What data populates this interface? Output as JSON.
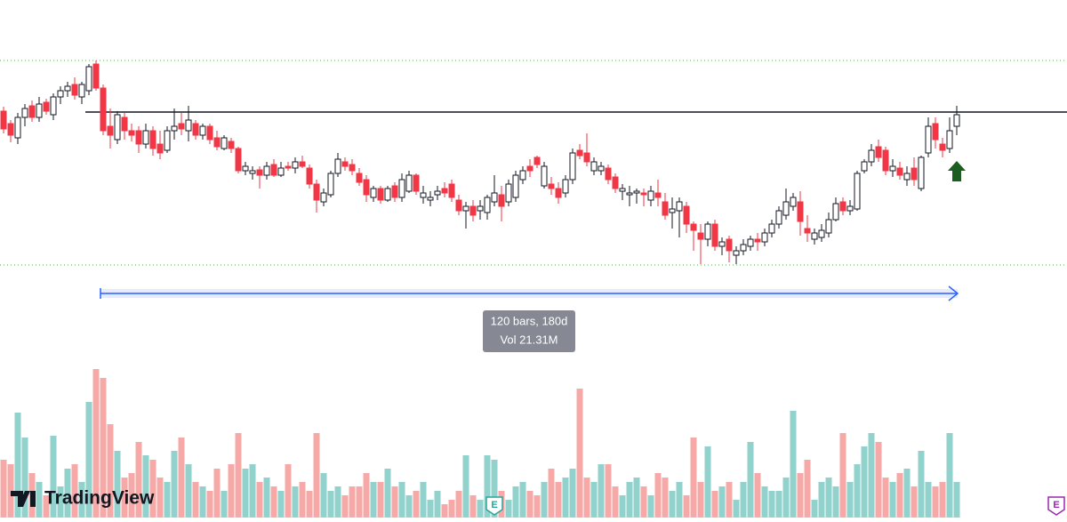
{
  "chart_data": {
    "type": "candlestick",
    "ylim": [
      0,
      587
    ],
    "volume_ylim": [
      0,
      180
    ],
    "up_color": "#ffffff",
    "up_border": "#131722",
    "down_color": "#f23645",
    "volume_up_color": "#92d2cc",
    "volume_down_color": "#f7a9a7",
    "ohlc": [
      [
        462,
        467,
        437,
        442
      ],
      [
        448,
        452,
        427,
        435
      ],
      [
        432,
        460,
        425,
        455
      ],
      [
        455,
        470,
        445,
        465
      ],
      [
        468,
        474,
        450,
        455
      ],
      [
        455,
        478,
        450,
        470
      ],
      [
        472,
        476,
        458,
        462
      ],
      [
        458,
        482,
        452,
        478
      ],
      [
        478,
        490,
        470,
        485
      ],
      [
        485,
        495,
        478,
        490
      ],
      [
        492,
        500,
        475,
        480
      ],
      [
        478,
        495,
        470,
        492
      ],
      [
        485,
        515,
        480,
        512
      ],
      [
        515,
        519,
        485,
        488
      ],
      [
        488,
        492,
        435,
        440
      ],
      [
        445,
        465,
        420,
        435
      ],
      [
        430,
        462,
        425,
        458
      ],
      [
        455,
        460,
        430,
        440
      ],
      [
        440,
        448,
        428,
        435
      ],
      [
        440,
        445,
        415,
        425
      ],
      [
        425,
        448,
        420,
        440
      ],
      [
        440,
        445,
        412,
        420
      ],
      [
        425,
        440,
        408,
        415
      ],
      [
        418,
        445,
        415,
        440
      ],
      [
        440,
        465,
        430,
        445
      ],
      [
        448,
        460,
        435,
        442
      ],
      [
        440,
        468,
        428,
        452
      ],
      [
        448,
        452,
        430,
        435
      ],
      [
        435,
        448,
        430,
        445
      ],
      [
        445,
        448,
        425,
        430
      ],
      [
        432,
        440,
        418,
        422
      ],
      [
        420,
        435,
        418,
        432
      ],
      [
        428,
        432,
        415,
        420
      ],
      [
        420,
        422,
        392,
        395
      ],
      [
        395,
        405,
        390,
        400
      ],
      [
        392,
        400,
        385,
        395
      ],
      [
        396,
        400,
        375,
        390
      ],
      [
        390,
        405,
        385,
        400
      ],
      [
        402,
        408,
        388,
        390
      ],
      [
        390,
        405,
        388,
        398
      ],
      [
        400,
        405,
        395,
        398
      ],
      [
        398,
        410,
        392,
        405
      ],
      [
        405,
        412,
        398,
        400
      ],
      [
        398,
        402,
        375,
        380
      ],
      [
        380,
        385,
        348,
        362
      ],
      [
        360,
        375,
        355,
        370
      ],
      [
        368,
        395,
        365,
        392
      ],
      [
        392,
        415,
        388,
        408
      ],
      [
        405,
        410,
        395,
        400
      ],
      [
        402,
        408,
        390,
        395
      ],
      [
        392,
        398,
        378,
        382
      ],
      [
        385,
        390,
        360,
        368
      ],
      [
        365,
        378,
        360,
        375
      ],
      [
        375,
        378,
        358,
        362
      ],
      [
        362,
        378,
        360,
        375
      ],
      [
        378,
        382,
        360,
        365
      ],
      [
        365,
        392,
        360,
        385
      ],
      [
        372,
        395,
        370,
        390
      ],
      [
        390,
        392,
        368,
        372
      ],
      [
        365,
        378,
        358,
        370
      ],
      [
        362,
        372,
        355,
        365
      ],
      [
        368,
        378,
        362,
        372
      ],
      [
        375,
        382,
        365,
        370
      ],
      [
        380,
        385,
        360,
        365
      ],
      [
        362,
        368,
        345,
        350
      ],
      [
        350,
        360,
        330,
        355
      ],
      [
        355,
        362,
        338,
        345
      ],
      [
        350,
        362,
        340,
        355
      ],
      [
        348,
        368,
        340,
        365
      ],
      [
        360,
        390,
        355,
        370
      ],
      [
        368,
        378,
        338,
        355
      ],
      [
        360,
        385,
        355,
        380
      ],
      [
        365,
        395,
        360,
        390
      ],
      [
        385,
        400,
        380,
        395
      ],
      [
        400,
        408,
        388,
        395
      ],
      [
        410,
        412,
        398,
        402
      ],
      [
        378,
        405,
        375,
        400
      ],
      [
        380,
        388,
        368,
        375
      ],
      [
        375,
        382,
        358,
        365
      ],
      [
        370,
        390,
        365,
        385
      ],
      [
        385,
        420,
        380,
        415
      ],
      [
        418,
        425,
        408,
        412
      ],
      [
        415,
        437,
        400,
        405
      ],
      [
        395,
        410,
        390,
        405
      ],
      [
        395,
        405,
        390,
        400
      ],
      [
        398,
        402,
        380,
        385
      ],
      [
        388,
        392,
        370,
        375
      ],
      [
        372,
        380,
        362,
        375
      ],
      [
        368,
        378,
        355,
        370
      ],
      [
        370,
        375,
        358,
        372
      ],
      [
        370,
        375,
        355,
        368
      ],
      [
        362,
        378,
        355,
        372
      ],
      [
        370,
        385,
        355,
        365
      ],
      [
        360,
        370,
        340,
        345
      ],
      [
        348,
        365,
        330,
        352
      ],
      [
        350,
        365,
        320,
        360
      ],
      [
        355,
        360,
        325,
        335
      ],
      [
        335,
        338,
        305,
        328
      ],
      [
        325,
        335,
        290,
        318
      ],
      [
        318,
        338,
        310,
        335
      ],
      [
        335,
        340,
        305,
        310
      ],
      [
        310,
        320,
        300,
        315
      ],
      [
        318,
        322,
        292,
        305
      ],
      [
        300,
        310,
        290,
        305
      ],
      [
        305,
        318,
        300,
        312
      ],
      [
        310,
        322,
        305,
        318
      ],
      [
        318,
        325,
        305,
        315
      ],
      [
        315,
        330,
        310,
        325
      ],
      [
        325,
        340,
        320,
        335
      ],
      [
        335,
        355,
        330,
        350
      ],
      [
        345,
        375,
        340,
        360
      ],
      [
        355,
        370,
        350,
        365
      ],
      [
        360,
        372,
        322,
        338
      ],
      [
        330,
        345,
        315,
        325
      ],
      [
        318,
        330,
        312,
        325
      ],
      [
        320,
        335,
        315,
        328
      ],
      [
        325,
        348,
        320,
        340
      ],
      [
        340,
        365,
        338,
        358
      ],
      [
        360,
        365,
        345,
        350
      ],
      [
        350,
        362,
        345,
        355
      ],
      [
        352,
        395,
        350,
        392
      ],
      [
        395,
        408,
        392,
        405
      ],
      [
        405,
        425,
        400,
        418
      ],
      [
        422,
        430,
        405,
        410
      ],
      [
        418,
        422,
        390,
        395
      ],
      [
        395,
        408,
        388,
        400
      ],
      [
        398,
        405,
        385,
        390
      ],
      [
        385,
        400,
        378,
        392
      ],
      [
        398,
        410,
        378,
        385
      ],
      [
        375,
        412,
        372,
        410
      ],
      [
        415,
        455,
        410,
        445
      ],
      [
        448,
        455,
        420,
        430
      ],
      [
        425,
        432,
        410,
        418
      ],
      [
        420,
        455,
        415,
        440
      ],
      [
        445,
        468,
        435,
        458
      ]
    ],
    "volume": [
      65,
      60,
      118,
      90,
      50,
      40,
      25,
      92,
      35,
      55,
      60,
      40,
      130,
      167,
      157,
      105,
      75,
      45,
      50,
      85,
      70,
      65,
      45,
      40,
      75,
      90,
      60,
      40,
      35,
      30,
      55,
      30,
      60,
      95,
      55,
      60,
      40,
      45,
      35,
      30,
      60,
      35,
      40,
      30,
      95,
      50,
      30,
      35,
      25,
      35,
      35,
      50,
      40,
      40,
      55,
      35,
      40,
      25,
      30,
      40,
      20,
      30,
      15,
      20,
      30,
      70,
      25,
      20,
      70,
      65,
      30,
      20,
      35,
      40,
      30,
      25,
      40,
      55,
      40,
      45,
      55,
      145,
      45,
      40,
      60,
      60,
      35,
      25,
      40,
      45,
      35,
      25,
      50,
      45,
      30,
      40,
      25,
      90,
      40,
      80,
      30,
      35,
      40,
      20,
      40,
      85,
      50,
      35,
      30,
      30,
      45,
      120,
      50,
      65,
      20,
      40,
      45,
      35,
      95,
      40,
      60,
      80,
      95,
      85,
      45,
      40,
      50,
      55,
      35,
      75,
      40,
      35,
      40,
      95,
      40
    ],
    "levels": [
      {
        "value": 461,
        "style": "solid",
        "color": "#131722",
        "start": 12
      },
      {
        "value": 519,
        "style": "dotted",
        "color": "#4caf50"
      },
      {
        "value": 289,
        "style": "dotted",
        "color": "#4caf50"
      }
    ],
    "measure": {
      "range": [
        14,
        134
      ],
      "line1": "120 bars, 180d",
      "line2": "Vol 21.31M",
      "color": "#2962ff"
    },
    "signals": [
      {
        "index": 134,
        "direction": "up",
        "color": "#1b5e20"
      }
    ],
    "events": [
      {
        "index": 69,
        "label": "E"
      },
      {
        "index": 148,
        "label": "E"
      }
    ],
    "logo": "TradingView"
  }
}
